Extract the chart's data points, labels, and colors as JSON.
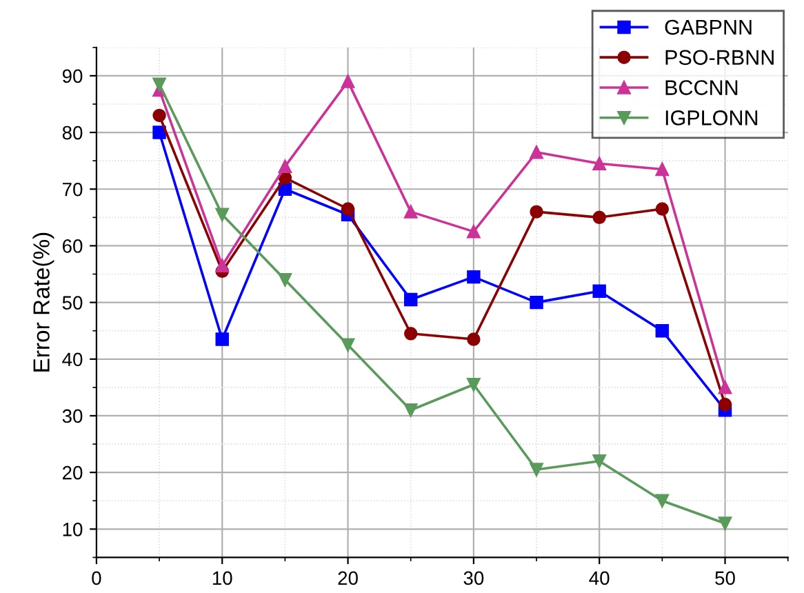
{
  "chart_data": {
    "type": "line",
    "ylabel": "Error Rate(%)",
    "x": [
      5,
      10,
      15,
      20,
      25,
      30,
      35,
      40,
      45,
      50
    ],
    "xlim": [
      0,
      55
    ],
    "xticks": [
      0,
      10,
      20,
      30,
      40,
      50
    ],
    "ylim": [
      5,
      95
    ],
    "yticks": [
      10,
      20,
      30,
      40,
      50,
      60,
      70,
      80,
      90
    ],
    "grid": true,
    "legend": "top right",
    "series": [
      {
        "name": "GABPNN",
        "color": "#0000ff",
        "marker": "square",
        "values": [
          80,
          43.5,
          70,
          65.5,
          50.5,
          54.5,
          50,
          52,
          45,
          31
        ]
      },
      {
        "name": "PSO-RBNN",
        "color": "#8b0000",
        "marker": "circle",
        "values": [
          83,
          55.5,
          72,
          66.5,
          44.5,
          43.5,
          66,
          65,
          66.5,
          32
        ]
      },
      {
        "name": "BCCNN",
        "color": "#cc3399",
        "marker": "triangle",
        "values": [
          87.5,
          56.5,
          74,
          89,
          66,
          62.5,
          76.5,
          74.5,
          73.5,
          35
        ]
      },
      {
        "name": "IGPLONN",
        "color": "#5a9a5a",
        "marker": "triangle_down",
        "values": [
          88.5,
          65.5,
          54,
          42.5,
          31,
          35.5,
          20.5,
          22,
          15,
          11
        ]
      }
    ]
  }
}
